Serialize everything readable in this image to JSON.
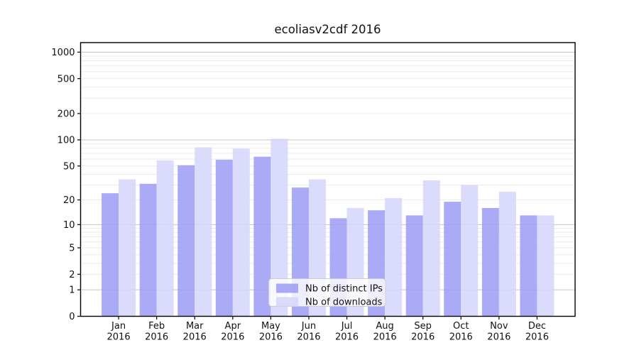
{
  "chart_data": {
    "type": "bar",
    "title": "ecoliasv2cdf 2016",
    "categories": [
      "Jan",
      "Feb",
      "Mar",
      "Apr",
      "May",
      "Jun",
      "Jul",
      "Aug",
      "Sep",
      "Oct",
      "Nov",
      "Dec"
    ],
    "year_label": "2016",
    "series": [
      {
        "name": "Nb of distinct IPs",
        "color": "#9b9bf5",
        "values": [
          24,
          31,
          51,
          59,
          64,
          28,
          12,
          15,
          13,
          19,
          16,
          13
        ]
      },
      {
        "name": "Nb of downloads",
        "color": "#d5d5fa",
        "values": [
          35,
          58,
          82,
          79,
          103,
          35,
          16,
          21,
          34,
          30,
          25,
          13
        ]
      }
    ],
    "y_scale": "log1p",
    "y_tick_values": [
      0,
      1,
      2,
      5,
      10,
      20,
      50,
      100,
      200,
      500,
      1000
    ],
    "ylim": [
      0,
      1280
    ],
    "grid": true,
    "legend": {
      "labels": [
        "Nb of distinct IPs",
        "Nb of downloads"
      ],
      "position": "lower center"
    },
    "colors": {
      "bar_distinct_ips": "#9b9bf5",
      "bar_downloads": "#d5d5fa",
      "grid_major": "#c4c4c4",
      "grid_minor": "#ebebeb",
      "axis": "#000000",
      "text": "#111111",
      "legend_border": "#cccccc",
      "background": "#ffffff"
    }
  }
}
